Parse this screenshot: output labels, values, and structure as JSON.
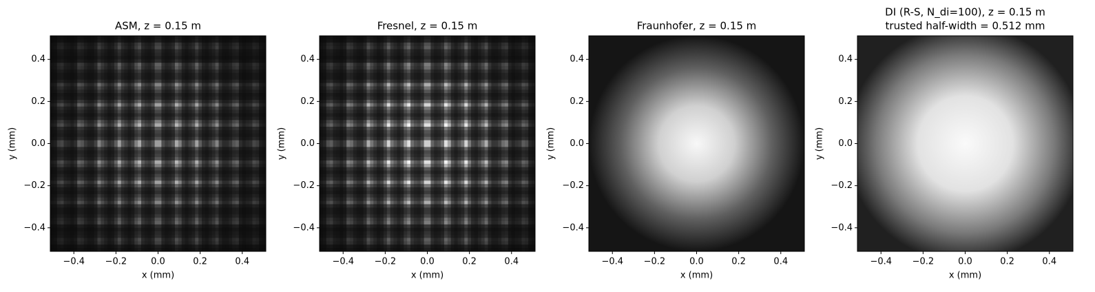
{
  "chart_data": [
    {
      "type": "image",
      "title": "ASM, z = 0.15 m",
      "x_label": "x (mm)",
      "y_label": "y (mm)",
      "colormap": "gray",
      "xlim": [
        -0.512,
        0.512
      ],
      "ylim": [
        -0.512,
        0.512
      ],
      "xticks": [
        {
          "value": -0.4,
          "label": "−0.4"
        },
        {
          "value": -0.2,
          "label": "−0.2"
        },
        {
          "value": 0,
          "label": "0.0"
        },
        0.2,
        0.4
      ],
      "yticks": [
        {
          "value": -0.4,
          "label": "−0.4"
        },
        {
          "value": -0.2,
          "label": "−0.2"
        },
        {
          "value": 0,
          "label": "0.0"
        },
        0.2,
        0.4
      ]
    },
    {
      "type": "image",
      "title": "Fresnel, z = 0.15 m",
      "x_label": "x (mm)",
      "y_label": "y (mm)",
      "colormap": "gray",
      "xlim": [
        -0.512,
        0.512
      ],
      "ylim": [
        -0.512,
        0.512
      ],
      "xticks": [
        {
          "value": -0.4,
          "label": "−0.4"
        },
        {
          "value": -0.2,
          "label": "−0.2"
        },
        {
          "value": 0,
          "label": "0.0"
        },
        0.2,
        0.4
      ],
      "yticks": [
        {
          "value": -0.4,
          "label": "−0.4"
        },
        {
          "value": -0.2,
          "label": "−0.2"
        },
        {
          "value": 0,
          "label": "0.0"
        },
        0.2,
        0.4
      ]
    },
    {
      "type": "image",
      "title": "Fraunhofer, z = 0.15 m",
      "x_label": "x (mm)",
      "y_label": "y (mm)",
      "colormap": "gray",
      "xlim": [
        -0.512,
        0.512
      ],
      "ylim": [
        -0.512,
        0.512
      ],
      "xticks": [
        {
          "value": -0.4,
          "label": "−0.4"
        },
        {
          "value": -0.2,
          "label": "−0.2"
        },
        {
          "value": 0,
          "label": "0.0"
        },
        0.2,
        0.4
      ],
      "yticks": [
        {
          "value": -0.4,
          "label": "−0.4"
        },
        {
          "value": -0.2,
          "label": "−0.2"
        },
        {
          "value": 0,
          "label": "0.0"
        },
        0.2,
        0.4
      ]
    },
    {
      "type": "image",
      "title": "DI (R-S, N_di=100), z = 0.15 m",
      "subtitle": "trusted half-width = 0.512 mm",
      "x_label": "x (mm)",
      "y_label": "y (mm)",
      "colormap": "gray",
      "xlim": [
        -0.512,
        0.512
      ],
      "ylim": [
        -0.512,
        0.512
      ],
      "xticks": [
        {
          "value": -0.4,
          "label": "−0.4"
        },
        {
          "value": -0.2,
          "label": "−0.2"
        },
        {
          "value": 0,
          "label": "0.0"
        },
        0.2,
        0.4
      ],
      "yticks": [
        {
          "value": -0.4,
          "label": "−0.4"
        },
        {
          "value": -0.2,
          "label": "−0.2"
        },
        {
          "value": 0,
          "label": "0.0"
        },
        0.2,
        0.4
      ]
    }
  ]
}
